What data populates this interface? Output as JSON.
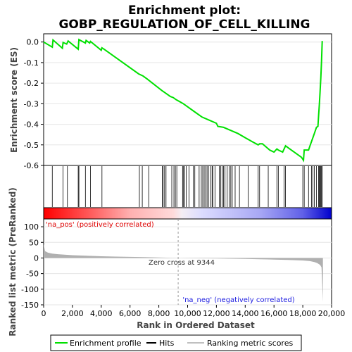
{
  "chart_data": {
    "type": "line",
    "title_line1": "Enrichment plot:",
    "title_line2": "GOBP_REGULATION_OF_CELL_KILLING",
    "colors": {
      "es_line": "#00e000",
      "hit": "#000000",
      "metric_fill": "#b0b0b0",
      "pos_label": "#e00000",
      "neg_label": "#2020e0",
      "zero_line": "#999999"
    },
    "es_panel": {
      "ylabel": "Enrichment score (ES)",
      "ylim": [
        -0.6,
        0.04
      ],
      "yticks": [
        0.0,
        -0.1,
        -0.2,
        -0.3,
        -0.4,
        -0.5,
        -0.6
      ],
      "ytick_labels": [
        "0.0",
        "-0.1",
        "-0.2",
        "-0.3",
        "-0.4",
        "-0.5",
        "-0.6"
      ],
      "points": [
        [
          0,
          0.0
        ],
        [
          600,
          -0.025
        ],
        [
          650,
          0.01
        ],
        [
          1300,
          -0.03
        ],
        [
          1350,
          -0.002
        ],
        [
          1600,
          -0.01
        ],
        [
          1700,
          0.005
        ],
        [
          2400,
          -0.035
        ],
        [
          2450,
          0.012
        ],
        [
          2900,
          -0.005
        ],
        [
          2950,
          0.008
        ],
        [
          3200,
          -0.005
        ],
        [
          3250,
          0.003
        ],
        [
          4000,
          -0.04
        ],
        [
          4050,
          -0.028
        ],
        [
          4200,
          -0.035
        ],
        [
          6600,
          -0.155
        ],
        [
          6900,
          -0.165
        ],
        [
          7200,
          -0.18
        ],
        [
          8200,
          -0.235
        ],
        [
          8300,
          -0.24
        ],
        [
          8500,
          -0.25
        ],
        [
          8800,
          -0.265
        ],
        [
          9000,
          -0.27
        ],
        [
          9200,
          -0.28
        ],
        [
          9700,
          -0.3
        ],
        [
          10000,
          -0.315
        ],
        [
          10500,
          -0.34
        ],
        [
          11000,
          -0.365
        ],
        [
          11500,
          -0.38
        ],
        [
          12000,
          -0.395
        ],
        [
          12100,
          -0.41
        ],
        [
          12500,
          -0.415
        ],
        [
          13000,
          -0.43
        ],
        [
          13500,
          -0.445
        ],
        [
          14000,
          -0.465
        ],
        [
          14500,
          -0.485
        ],
        [
          14900,
          -0.5
        ],
        [
          15000,
          -0.495
        ],
        [
          15200,
          -0.495
        ],
        [
          15700,
          -0.525
        ],
        [
          16000,
          -0.535
        ],
        [
          16200,
          -0.52
        ],
        [
          16300,
          -0.525
        ],
        [
          16600,
          -0.535
        ],
        [
          16800,
          -0.505
        ],
        [
          17200,
          -0.525
        ],
        [
          17900,
          -0.56
        ],
        [
          18050,
          -0.575
        ],
        [
          18100,
          -0.525
        ],
        [
          18400,
          -0.525
        ],
        [
          18500,
          -0.505
        ],
        [
          18650,
          -0.475
        ],
        [
          18800,
          -0.445
        ],
        [
          18950,
          -0.415
        ],
        [
          19050,
          -0.41
        ],
        [
          19100,
          -0.355
        ],
        [
          19150,
          -0.305
        ],
        [
          19200,
          -0.245
        ],
        [
          19250,
          -0.175
        ],
        [
          19300,
          -0.095
        ],
        [
          19350,
          0.005
        ]
      ]
    },
    "hits": [
      600,
      1350,
      1650,
      2400,
      2450,
      2900,
      3250,
      4050,
      6650,
      6850,
      7300,
      8250,
      8300,
      8400,
      8500,
      8900,
      9050,
      9150,
      9250,
      9650,
      9700,
      9800,
      9900,
      10100,
      10400,
      10500,
      10800,
      10950,
      11050,
      11150,
      11250,
      11350,
      11450,
      11600,
      11700,
      11750,
      11900,
      12200,
      12300,
      12400,
      12500,
      12600,
      12750,
      12900,
      13000,
      13100,
      13300,
      13600,
      14200,
      14900,
      15000,
      15600,
      16200,
      16300,
      16700,
      16800,
      18000,
      18100,
      18400,
      18600,
      18700,
      18800,
      18950,
      19100,
      19150,
      19200,
      19250,
      19300,
      19350
    ],
    "metric_panel": {
      "ylabel": "Ranked list metric (PreRanked)",
      "ylim": [
        -150,
        125
      ],
      "yticks": [
        100,
        50,
        0,
        -50,
        -100,
        -150
      ],
      "ytick_labels": [
        "100",
        "50",
        "0",
        "-50",
        "-100",
        "-150"
      ],
      "profile": [
        [
          0,
          45
        ],
        [
          100,
          22
        ],
        [
          300,
          17
        ],
        [
          600,
          14
        ],
        [
          1000,
          12
        ],
        [
          2000,
          9
        ],
        [
          3000,
          7
        ],
        [
          4000,
          5.5
        ],
        [
          5000,
          4.5
        ],
        [
          6000,
          3.5
        ],
        [
          7000,
          2.5
        ],
        [
          8000,
          1.5
        ],
        [
          9000,
          0.5
        ],
        [
          9344,
          0
        ],
        [
          10000,
          -0.5
        ],
        [
          12000,
          -1.5
        ],
        [
          14000,
          -3
        ],
        [
          15000,
          -4
        ],
        [
          16000,
          -5
        ],
        [
          17000,
          -6.5
        ],
        [
          18000,
          -8
        ],
        [
          18500,
          -10
        ],
        [
          18800,
          -13
        ],
        [
          19000,
          -16
        ],
        [
          19200,
          -22
        ],
        [
          19300,
          -30
        ],
        [
          19400,
          -140
        ]
      ],
      "pos_label": "'na_pos' (positively correlated)",
      "neg_label": "'na_neg' (negatively correlated)",
      "zero_cross_label": "Zero cross at 9344",
      "zero_cross": 9344
    },
    "xlabel": "Rank in Ordered Dataset",
    "xlim": [
      0,
      20000
    ],
    "xmax_data": 19400,
    "xticks": [
      0,
      2000,
      4000,
      6000,
      8000,
      10000,
      12000,
      14000,
      16000,
      18000,
      20000
    ],
    "xtick_labels": [
      "0",
      "2,000",
      "4,000",
      "6,000",
      "8,000",
      "10,000",
      "12,000",
      "14,000",
      "16,000",
      "18,000",
      "20,000"
    ],
    "legend": {
      "entries": [
        {
          "label": "Enrichment profile",
          "style": "line",
          "color": "#00e000"
        },
        {
          "label": "Hits",
          "style": "line",
          "color": "#000000"
        },
        {
          "label": "Ranking metric scores",
          "style": "line",
          "color": "#c0c0c0"
        }
      ]
    }
  }
}
